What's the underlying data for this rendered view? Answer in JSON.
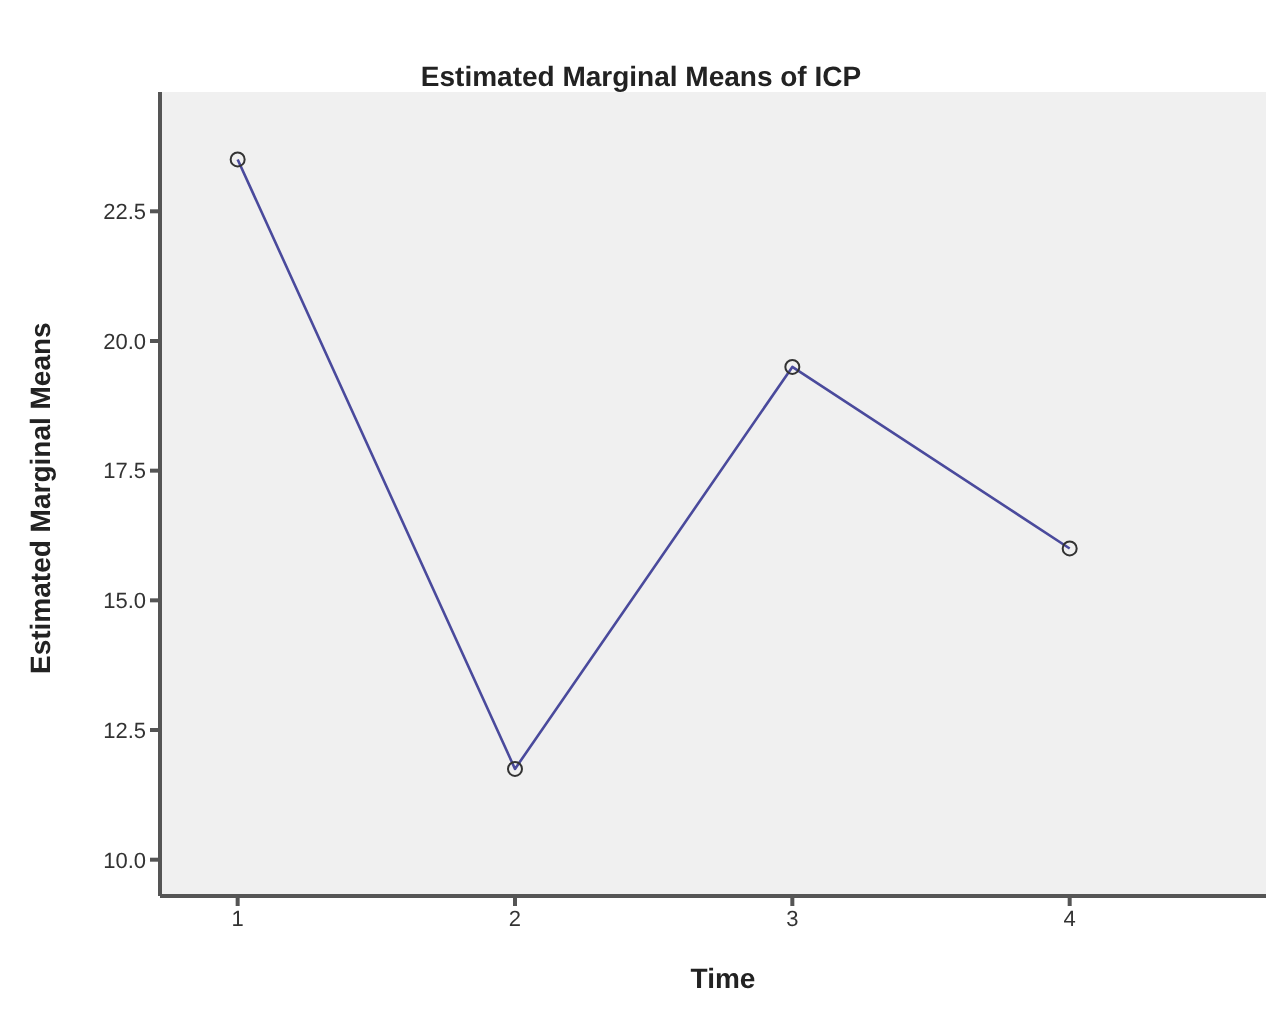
{
  "chart_data": {
    "type": "line",
    "title": "Estimated Marginal Means of ICP",
    "xlabel": "Time",
    "ylabel": "Estimated Marginal Means",
    "categories": [
      "1",
      "2",
      "3",
      "4"
    ],
    "series": [
      {
        "color": "#4a4a9c",
        "values": [
          23.5,
          11.75,
          19.5,
          16.0
        ]
      }
    ],
    "ylim": [
      9.3,
      24.8
    ],
    "yticks": [
      {
        "value": 10,
        "label": "10.0"
      },
      {
        "value": 12.5,
        "label": "12.5"
      },
      {
        "value": 15,
        "label": "15.0"
      },
      {
        "value": 17.5,
        "label": "17.5"
      },
      {
        "value": 20,
        "label": "20.0"
      },
      {
        "value": 22.5,
        "label": "22.5"
      }
    ],
    "marker": "circle",
    "line_style": "solid",
    "grid": false,
    "legend": false
  }
}
